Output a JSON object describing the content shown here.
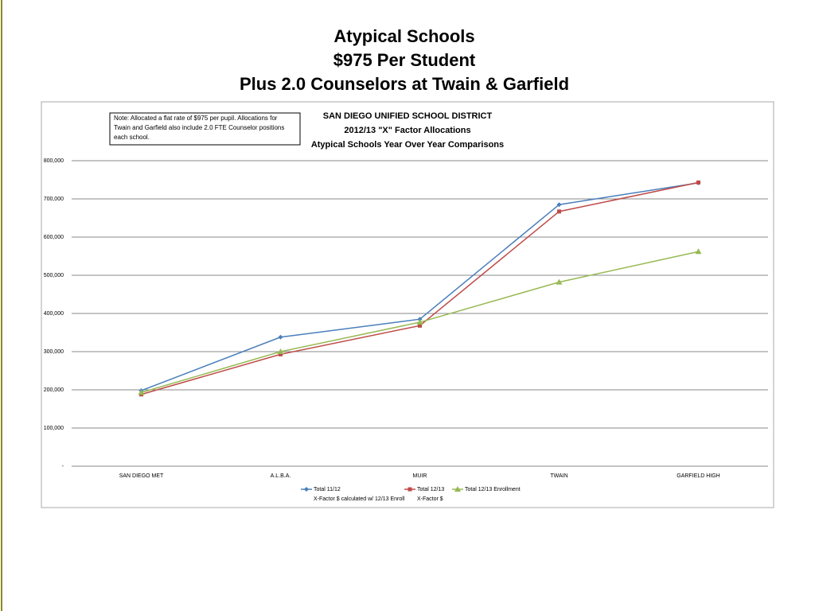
{
  "slide_title": [
    "Atypical Schools",
    "$975 Per Student",
    "Plus 2.0 Counselors at Twain & Garfield"
  ],
  "chart_data": {
    "type": "line",
    "title_lines": [
      "SAN DIEGO UNIFIED SCHOOL DISTRICT",
      "2012/13 \"X\" Factor Allocations",
      "Atypical Schools Year Over Year Comparisons"
    ],
    "note": [
      "Note: Allocated a flat rate of $975 per pupil. Allocations for",
      "Twain and Garfield also include 2.0 FTE Counselor positions",
      "each school."
    ],
    "categories": [
      "SAN DIEGO MET",
      "A.L.B.A.",
      "MUIR",
      "TWAIN",
      "GARFIELD HIGH"
    ],
    "series": [
      {
        "name": "Total 11/12",
        "name_note": "X-Factor $ calculated w/ 12/13 Enroll",
        "color": "#4a7ebb",
        "marker": "diamond",
        "values": [
          198000,
          338000,
          385000,
          685000,
          742000
        ]
      },
      {
        "name": "Total 12/13",
        "name_note": "X-Factor $",
        "color": "#be4b48",
        "marker": "square",
        "values": [
          188000,
          293000,
          368000,
          667000,
          743000
        ]
      },
      {
        "name": "Total 12/13 Enrollment",
        "color": "#98b954",
        "marker": "triangle",
        "values": [
          193000,
          300000,
          377000,
          482000,
          562000
        ]
      }
    ],
    "ylim": [
      0,
      800000
    ],
    "yticks": [
      {
        "value": 0,
        "label": "-"
      },
      {
        "value": 100000,
        "label": "100,000"
      },
      {
        "value": 200000,
        "label": "200,000"
      },
      {
        "value": 300000,
        "label": "300,000"
      },
      {
        "value": 400000,
        "label": "400,000"
      },
      {
        "value": 500000,
        "label": "500,000"
      },
      {
        "value": 600000,
        "label": "600,000"
      },
      {
        "value": 700000,
        "label": "700,000"
      },
      {
        "value": 800000,
        "label": "800,000"
      }
    ],
    "grid": true
  }
}
